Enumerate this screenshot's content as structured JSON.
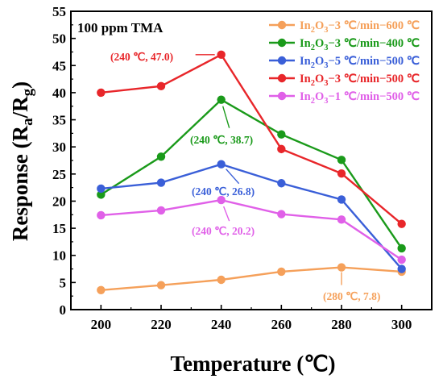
{
  "chart_data": {
    "type": "line",
    "title": "",
    "inset_label": "100 ppm TMA",
    "xlabel": "Temperature (℃)",
    "ylabel": {
      "main": "Response (R",
      "sub1": "a",
      "mid": "/R",
      "sub2": "g",
      "end": ")"
    },
    "x": [
      200,
      220,
      240,
      260,
      280,
      300
    ],
    "xlim": [
      190,
      310
    ],
    "ylim": [
      0,
      55
    ],
    "xticks": [
      200,
      220,
      240,
      260,
      280,
      300
    ],
    "yticks": [
      0,
      5,
      10,
      15,
      20,
      25,
      30,
      35,
      40,
      45,
      50,
      55
    ],
    "grid": false,
    "legend_position": "top-right",
    "series": [
      {
        "name": "In2O3-3 ℃/min-600 ℃",
        "legend": {
          "a": "In",
          "b": "2",
          "c": "O",
          "d": "3",
          "e": "−3 ℃/min−600 ℃"
        },
        "color": "#F5A05A",
        "values": [
          3.6,
          4.5,
          5.5,
          7.0,
          7.8,
          7.0
        ]
      },
      {
        "name": "In2O3-3 ℃/min-400 ℃",
        "legend": {
          "a": "In",
          "b": "2",
          "c": "O",
          "d": "3",
          "e": "−3 ℃/min−400 ℃"
        },
        "color": "#1A9A1A",
        "values": [
          21.2,
          28.2,
          38.7,
          32.3,
          27.6,
          11.3
        ]
      },
      {
        "name": "In2O3-5 ℃/min-500 ℃",
        "legend": {
          "a": "In",
          "b": "2",
          "c": "O",
          "d": "3",
          "e": "−5 ℃/min−500 ℃"
        },
        "color": "#3A5FD8",
        "values": [
          22.3,
          23.4,
          26.8,
          23.3,
          20.3,
          7.5
        ]
      },
      {
        "name": "In2O3-3 ℃/min-500 ℃",
        "legend": {
          "a": "In",
          "b": "2",
          "c": "O",
          "d": "3",
          "e": "−3 ℃/min−500 ℃"
        },
        "color": "#E8262A",
        "values": [
          40.0,
          41.2,
          47.0,
          29.6,
          25.1,
          15.8
        ]
      },
      {
        "name": "In2O3-1 ℃/min-500 ℃",
        "legend": {
          "a": "In",
          "b": "2",
          "c": "O",
          "d": "3",
          "e": "−1 ℃/min−500 ℃"
        },
        "color": "#E060E8",
        "values": [
          17.4,
          18.3,
          20.2,
          17.6,
          16.6,
          9.2
        ]
      }
    ],
    "annotations": [
      {
        "text": "(240 ℃, 47.0)",
        "series": 3,
        "x": 240,
        "y": 47.0
      },
      {
        "text": "(240 ℃, 38.7)",
        "series": 1,
        "x": 240,
        "y": 38.7
      },
      {
        "text": "(240 ℃, 26.8)",
        "series": 2,
        "x": 240,
        "y": 26.8
      },
      {
        "text": "(240 ℃, 20.2)",
        "series": 4,
        "x": 240,
        "y": 20.2
      },
      {
        "text": "(280 ℃, 7.8)",
        "series": 0,
        "x": 280,
        "y": 7.8
      }
    ]
  }
}
